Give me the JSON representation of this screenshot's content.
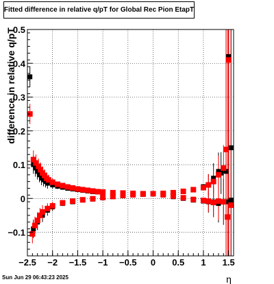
{
  "chart_data": {
    "type": "scatter",
    "title": "Fitted difference in relative q/pT for Global Rec Pion EtapT",
    "xlabel": "η",
    "ylabel": "difference in relative q/pT",
    "xlim": [
      -2.5,
      1.6
    ],
    "ylim": [
      -0.17,
      0.5
    ],
    "x_ticks": [
      -2.5,
      -2,
      -1.5,
      -1,
      -0.5,
      0,
      0.5,
      1,
      1.5
    ],
    "x_tick_labels": [
      "−2.5",
      "−2",
      "−1.5",
      "−1",
      "−0.5",
      "0",
      "0.5",
      "1",
      "1.5"
    ],
    "y_ticks": [
      -0.1,
      0,
      0.1,
      0.2,
      0.3,
      0.4,
      0.5
    ],
    "y_tick_labels": [
      "−0.1",
      "0",
      "0.1",
      "0.2",
      "0.3",
      "0.4",
      "0.5"
    ],
    "grid": true,
    "series": [
      {
        "color": "#000000",
        "marker": "square",
        "points": [
          [
            -2.45,
            0.36
          ],
          [
            -2.38,
            0.1
          ],
          [
            -2.34,
            0.09
          ],
          [
            -2.3,
            0.08
          ],
          [
            -2.26,
            0.07
          ],
          [
            -2.22,
            0.06
          ],
          [
            -2.18,
            0.055
          ],
          [
            -2.14,
            0.05
          ],
          [
            -2.1,
            0.045
          ],
          [
            -2.0,
            0.04
          ],
          [
            -1.9,
            0.036
          ],
          [
            -1.8,
            0.033
          ],
          [
            -1.7,
            0.03
          ],
          [
            -1.6,
            0.028
          ],
          [
            -1.5,
            0.026
          ],
          [
            -1.4,
            0.024
          ],
          [
            -1.3,
            0.022
          ],
          [
            -1.2,
            0.02
          ],
          [
            -1.1,
            0.019
          ],
          [
            -1.0,
            0.018
          ],
          [
            -0.8,
            0.016
          ],
          [
            -0.6,
            0.015
          ],
          [
            -0.4,
            0.014
          ],
          [
            -0.2,
            0.013
          ],
          [
            0.0,
            0.013
          ],
          [
            0.2,
            0.014
          ],
          [
            0.4,
            0.016
          ],
          [
            0.6,
            0.02
          ],
          [
            0.8,
            0.025
          ],
          [
            1.0,
            0.035
          ],
          [
            1.1,
            0.04
          ],
          [
            1.2,
            0.06
          ],
          [
            1.3,
            0.08
          ],
          [
            1.35,
            0.075
          ],
          [
            1.45,
            0.08
          ],
          [
            1.5,
            0.42
          ],
          [
            1.55,
            0.15
          ],
          [
            -2.38,
            -0.09
          ],
          [
            -2.3,
            -0.07
          ],
          [
            -2.2,
            -0.05
          ],
          [
            -2.1,
            -0.035
          ],
          [
            -2.0,
            -0.025
          ],
          [
            -1.8,
            -0.015
          ],
          [
            -1.6,
            -0.01
          ],
          [
            -1.4,
            -0.005
          ],
          [
            -1.2,
            -0.002
          ],
          [
            -1.0,
            0.002
          ],
          [
            -0.8,
            0.005
          ],
          [
            -0.6,
            0.008
          ],
          [
            -0.4,
            0.01
          ],
          [
            -0.2,
            0.012
          ],
          [
            0.2,
            0.01
          ],
          [
            0.4,
            0.005
          ],
          [
            0.6,
            0.0
          ],
          [
            0.8,
            -0.005
          ],
          [
            1.0,
            -0.008
          ],
          [
            1.1,
            -0.01
          ],
          [
            1.2,
            -0.01
          ],
          [
            1.3,
            -0.015
          ],
          [
            1.4,
            -0.01
          ],
          [
            1.5,
            -0.01
          ],
          [
            1.55,
            -0.005
          ]
        ]
      },
      {
        "color": "#ff0000",
        "marker": "square",
        "points": [
          [
            -2.45,
            0.25
          ],
          [
            -2.38,
            0.115
          ],
          [
            -2.33,
            0.105
          ],
          [
            -2.28,
            0.095
          ],
          [
            -2.24,
            0.085
          ],
          [
            -2.2,
            0.075
          ],
          [
            -2.16,
            0.068
          ],
          [
            -2.12,
            0.06
          ],
          [
            -2.08,
            0.055
          ],
          [
            -2.0,
            0.048
          ],
          [
            -1.9,
            0.042
          ],
          [
            -1.8,
            0.038
          ],
          [
            -1.7,
            0.034
          ],
          [
            -1.6,
            0.031
          ],
          [
            -1.5,
            0.028
          ],
          [
            -1.4,
            0.026
          ],
          [
            -1.3,
            0.024
          ],
          [
            -1.2,
            0.022
          ],
          [
            -1.1,
            0.02
          ],
          [
            -1.0,
            0.019
          ],
          [
            -0.8,
            0.017
          ],
          [
            -0.6,
            0.016
          ],
          [
            -0.4,
            0.015
          ],
          [
            -0.2,
            0.014
          ],
          [
            0.0,
            0.014
          ],
          [
            0.2,
            0.015
          ],
          [
            0.4,
            0.017
          ],
          [
            0.6,
            0.021
          ],
          [
            0.8,
            0.026
          ],
          [
            1.0,
            0.032
          ],
          [
            1.1,
            0.04
          ],
          [
            1.2,
            0.05
          ],
          [
            1.3,
            0.07
          ],
          [
            1.4,
            0.09
          ],
          [
            1.45,
            0.145
          ],
          [
            1.5,
            0.41
          ],
          [
            -2.4,
            -0.105
          ],
          [
            -2.35,
            -0.08
          ],
          [
            -2.3,
            -0.065
          ],
          [
            -2.25,
            -0.05
          ],
          [
            -2.2,
            -0.04
          ],
          [
            -2.1,
            -0.03
          ],
          [
            -2.0,
            -0.022
          ],
          [
            -1.8,
            -0.013
          ],
          [
            -1.6,
            -0.008
          ],
          [
            -1.4,
            -0.004
          ],
          [
            -1.2,
            -0.001
          ],
          [
            -1.0,
            0.003
          ],
          [
            -0.8,
            0.006
          ],
          [
            -0.6,
            0.009
          ],
          [
            -0.4,
            0.011
          ],
          [
            -0.2,
            0.013
          ],
          [
            0.2,
            0.011
          ],
          [
            0.4,
            0.007
          ],
          [
            0.6,
            0.002
          ],
          [
            0.8,
            -0.003
          ],
          [
            1.0,
            -0.006
          ],
          [
            1.1,
            -0.008
          ],
          [
            1.2,
            -0.012
          ],
          [
            1.3,
            -0.008
          ],
          [
            1.4,
            -0.01
          ],
          [
            1.48,
            -0.055
          ],
          [
            1.55,
            -0.02
          ]
        ]
      }
    ]
  },
  "footer": {
    "timestamp": "Sun Jun 29 06:43:23 2025"
  }
}
